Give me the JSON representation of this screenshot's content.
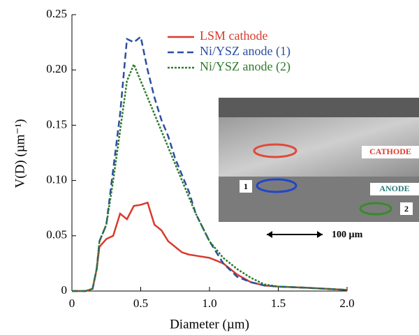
{
  "chart_data": {
    "type": "line",
    "xlabel": "Diameter (µm)",
    "ylabel": "V(D) (µm⁻¹)",
    "x": [
      0,
      0.1,
      0.15,
      0.18,
      0.2,
      0.25,
      0.3,
      0.35,
      0.4,
      0.45,
      0.5,
      0.55,
      0.6,
      0.65,
      0.7,
      0.75,
      0.8,
      0.85,
      0.9,
      1.0,
      1.1,
      1.2,
      1.3,
      1.4,
      1.5,
      1.7,
      2.0
    ],
    "series": [
      {
        "name": "LSM cathode",
        "color": "#d93a2b",
        "linestyle": "solid",
        "values": [
          0,
          0,
          0.002,
          0.02,
          0.04,
          0.047,
          0.05,
          0.07,
          0.065,
          0.077,
          0.078,
          0.08,
          0.06,
          0.055,
          0.045,
          0.04,
          0.035,
          0.033,
          0.032,
          0.03,
          0.025,
          0.015,
          0.008,
          0.005,
          0.004,
          0.003,
          0.001
        ]
      },
      {
        "name": "Ni/YSZ anode (1)",
        "color": "#2a4fa0",
        "linestyle": "dashed",
        "values": [
          0,
          0,
          0.002,
          0.02,
          0.045,
          0.06,
          0.11,
          0.16,
          0.228,
          0.225,
          0.23,
          0.2,
          0.175,
          0.155,
          0.14,
          0.12,
          0.105,
          0.09,
          0.07,
          0.045,
          0.025,
          0.013,
          0.008,
          0.005,
          0.004,
          0.003,
          0.001
        ]
      },
      {
        "name": "Ni/YSZ anode (2)",
        "color": "#2f7a2a",
        "linestyle": "dotted",
        "values": [
          0,
          0,
          0.002,
          0.02,
          0.045,
          0.06,
          0.1,
          0.145,
          0.19,
          0.205,
          0.19,
          0.175,
          0.16,
          0.145,
          0.13,
          0.115,
          0.1,
          0.085,
          0.07,
          0.045,
          0.03,
          0.02,
          0.012,
          0.006,
          0.004,
          0.003,
          0.001
        ]
      }
    ],
    "xlim": [
      0,
      2
    ],
    "ylim": [
      0,
      0.25
    ],
    "xticks": [
      0,
      0.5,
      {
        "value": 1,
        "label": "1.0"
      },
      1.5,
      {
        "value": 2,
        "label": "2.0"
      }
    ],
    "yticks": [
      0,
      0.05,
      {
        "value": 0.1,
        "label": "0.10"
      },
      0.15,
      {
        "value": 0.2,
        "label": "0.20"
      },
      0.25
    ],
    "legend": "upper right",
    "inset": {
      "cathode": "CATHODE",
      "anode": "ANODE",
      "marker_1": "1",
      "marker_2": "2",
      "scale_bar": "100 µm"
    }
  }
}
